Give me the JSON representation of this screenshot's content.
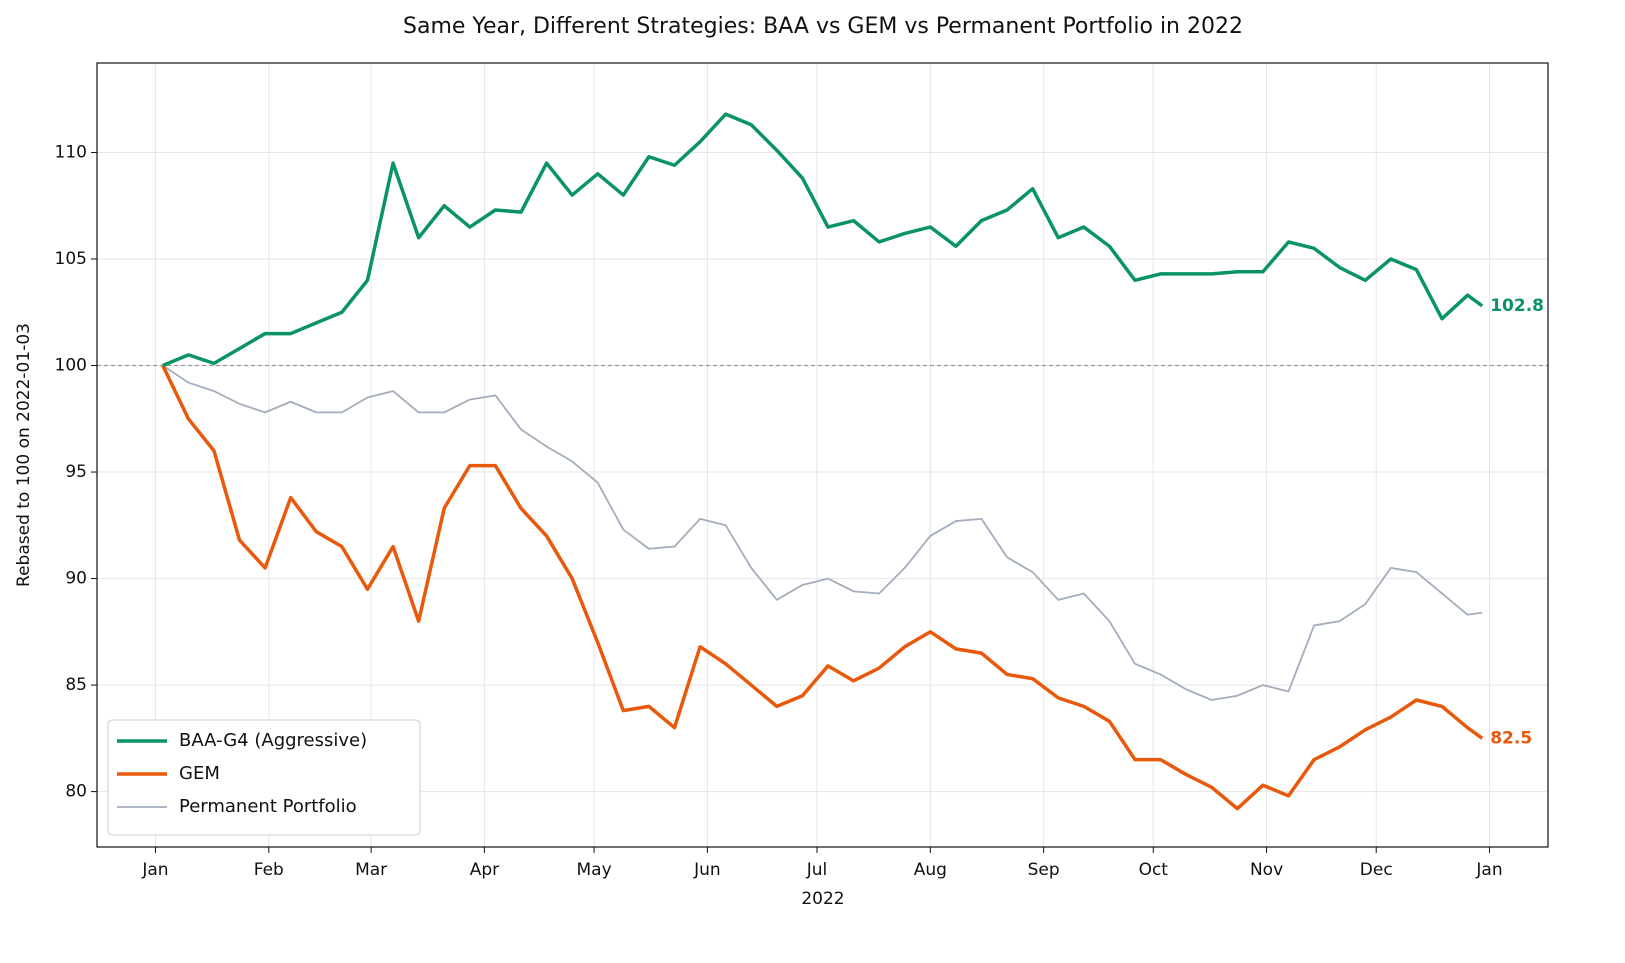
{
  "chart_data": {
    "type": "line",
    "title": "Same Year, Different Strategies: BAA vs GEM vs Permanent Portfolio in 2022",
    "x_label": "2022",
    "y_label": "Rebased to 100 on 2022-01-03",
    "x": [
      2,
      9,
      16,
      23,
      30,
      37,
      44,
      51,
      58,
      65,
      72,
      79,
      86,
      93,
      100,
      107,
      114,
      121,
      128,
      135,
      142,
      149,
      156,
      163,
      170,
      177,
      184,
      191,
      198,
      205,
      212,
      219,
      226,
      233,
      240,
      247,
      254,
      261,
      268,
      275,
      282,
      289,
      296,
      303,
      310,
      317,
      324,
      331,
      338,
      345,
      352,
      359,
      363
    ],
    "series": [
      {
        "name": "BAA-G4 (Aggressive)",
        "color": "#0a9464",
        "linewidth": 3.5,
        "last_label": "102.8",
        "values": [
          100,
          100.5,
          100.1,
          100.8,
          101.5,
          101.5,
          102.0,
          102.5,
          104,
          109.5,
          106,
          107.5,
          106.5,
          107.3,
          107.2,
          109.5,
          108,
          109,
          108,
          109.8,
          109.4,
          110.5,
          111.8,
          111.3,
          110.1,
          108.8,
          106.5,
          106.8,
          105.8,
          106.2,
          106.5,
          105.6,
          106.8,
          107.3,
          108.3,
          106,
          106.5,
          105.6,
          104,
          104.3,
          104.3,
          104.3,
          104.4,
          104.4,
          105.8,
          105.5,
          104.6,
          104.0,
          105,
          104.5,
          102.2,
          103.3,
          102.8
        ]
      },
      {
        "name": "GEM",
        "color": "#e8590c",
        "linewidth": 3.5,
        "last_label": "82.5",
        "values": [
          100,
          97.5,
          96,
          91.8,
          90.5,
          93.8,
          92.2,
          91.5,
          89.5,
          91.5,
          88,
          93.3,
          95.3,
          95.3,
          93.3,
          92,
          90,
          87,
          83.8,
          84,
          83,
          86.8,
          86,
          85,
          84,
          84.5,
          85.9,
          85.2,
          85.8,
          86.8,
          87.5,
          86.7,
          86.5,
          85.5,
          85.3,
          84.4,
          84,
          83.3,
          81.5,
          81.5,
          80.8,
          80.2,
          79.2,
          80.3,
          79.8,
          81.5,
          82.1,
          82.9,
          83.5,
          84.3,
          84,
          83,
          82.5
        ]
      },
      {
        "name": "Permanent Portfolio",
        "color": "#a3adbd",
        "linewidth": 1.8,
        "values": [
          100,
          99.2,
          98.8,
          98.2,
          97.8,
          98.3,
          97.8,
          97.8,
          98.5,
          98.8,
          97.8,
          97.8,
          98.4,
          98.6,
          97,
          96.2,
          95.5,
          94.5,
          92.3,
          91.4,
          91.5,
          92.8,
          92.5,
          90.5,
          89,
          89.7,
          90,
          89.4,
          89.3,
          90.5,
          92,
          92.7,
          92.8,
          91,
          90.3,
          89,
          89.3,
          88,
          86,
          85.5,
          84.8,
          84.3,
          84.5,
          85,
          84.7,
          87.8,
          88,
          88.8,
          90.5,
          90.3,
          89.3,
          88.3,
          88.4
        ]
      }
    ],
    "xlim": [
      -16,
      381
    ],
    "xticks": [
      {
        "value": 0,
        "label": "Jan"
      },
      {
        "value": 31,
        "label": "Feb"
      },
      {
        "value": 59,
        "label": "Mar"
      },
      {
        "value": 90,
        "label": "Apr"
      },
      {
        "value": 120,
        "label": "May"
      },
      {
        "value": 151,
        "label": "Jun"
      },
      {
        "value": 181,
        "label": "Jul"
      },
      {
        "value": 212,
        "label": "Aug"
      },
      {
        "value": 243,
        "label": "Sep"
      },
      {
        "value": 273,
        "label": "Oct"
      },
      {
        "value": 304,
        "label": "Nov"
      },
      {
        "value": 334,
        "label": "Dec"
      },
      {
        "value": 365,
        "label": "Jan"
      }
    ],
    "ylim": [
      77.4,
      114.2
    ],
    "yticks": [
      80,
      85,
      90,
      95,
      100,
      105,
      110
    ],
    "reference_line": 100,
    "grid": true,
    "legend": "lower left"
  }
}
